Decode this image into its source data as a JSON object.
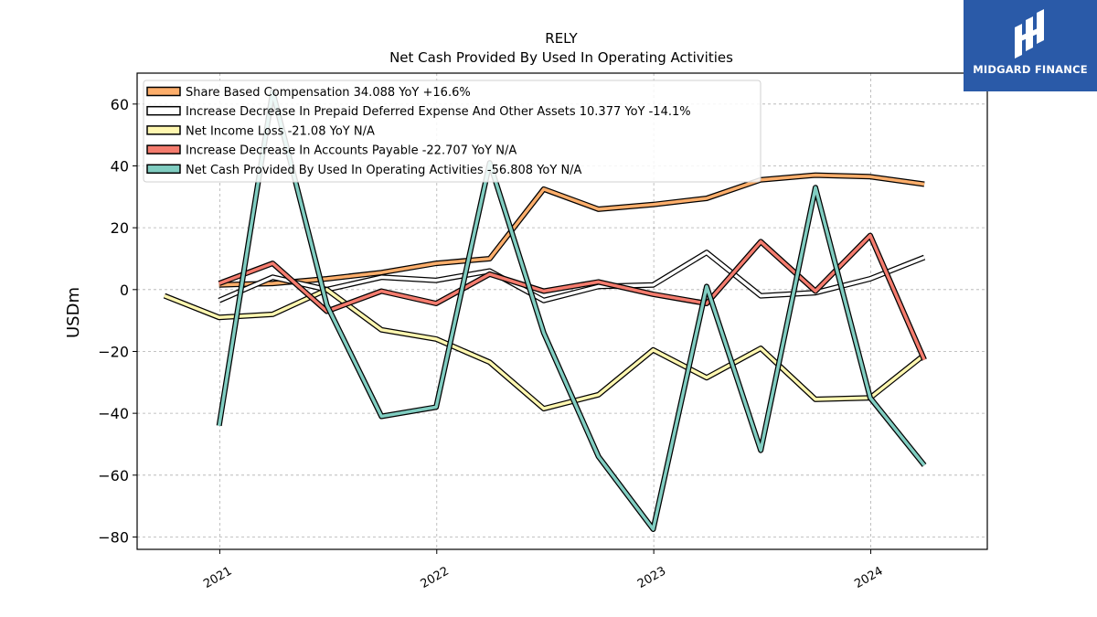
{
  "logo": {
    "text": "MIDGARD FINANCE"
  },
  "chart_data": {
    "type": "line",
    "title": "RELY",
    "subtitle": "Net Cash Provided By Used In Operating Activities",
    "ylabel": "USDm",
    "xlabel": "",
    "ylim": [
      -84,
      70
    ],
    "xlim": [
      "2020-08-15",
      "2024-07-15"
    ],
    "yticks": [
      60,
      40,
      20,
      0,
      -20,
      -40,
      -60,
      -80
    ],
    "ytick_labels": [
      "60",
      "40",
      "20",
      "0",
      "−20",
      "−40",
      "−60",
      "−80"
    ],
    "xticks": [
      "2021-01-01",
      "2022-01-01",
      "2023-01-01",
      "2024-01-01"
    ],
    "xtick_labels": [
      "2021",
      "2022",
      "2023",
      "2024"
    ],
    "grid": true,
    "legend_position": "top-left",
    "series": [
      {
        "name": "Share Based Compensation  34.088 YoY +16.6%",
        "color": "#fdae6b",
        "x": [
          "2020-12-31",
          "2021-03-31",
          "2021-06-30",
          "2021-09-30",
          "2021-12-31",
          "2022-03-31",
          "2022-06-30",
          "2022-09-30",
          "2022-12-31",
          "2023-03-31",
          "2023-06-30",
          "2023-09-30",
          "2023-12-31",
          "2024-03-31"
        ],
        "y": [
          1.5,
          2,
          3.5,
          5.5,
          8.5,
          10,
          32.5,
          26,
          27.5,
          29.5,
          35.5,
          37,
          36.5,
          34.1
        ]
      },
      {
        "name": "Increase Decrease In Prepaid Deferred Expense And Other Assets  10.377 YoY -14.1%",
        "color": "#ffffff",
        "x": [
          "2020-12-31",
          "2021-03-31",
          "2021-06-30",
          "2021-09-30",
          "2021-12-31",
          "2022-03-31",
          "2022-06-30",
          "2022-09-30",
          "2022-12-31",
          "2023-03-31",
          "2023-06-30",
          "2023-09-30",
          "2023-12-31",
          "2024-03-31"
        ],
        "y": [
          -3.5,
          4,
          0,
          4,
          3,
          6,
          -3.5,
          1,
          1.5,
          12,
          -2,
          -1,
          3.5,
          10.4
        ]
      },
      {
        "name": "Net Income Loss  -21.08 YoY N/A",
        "color": "#fff7b0",
        "x": [
          "2020-09-30",
          "2020-12-31",
          "2021-03-31",
          "2021-06-30",
          "2021-09-30",
          "2021-12-31",
          "2022-03-31",
          "2022-06-30",
          "2022-09-30",
          "2022-12-31",
          "2023-03-31",
          "2023-06-30",
          "2023-09-30",
          "2023-12-31",
          "2024-03-31"
        ],
        "y": [
          -2,
          -9,
          -8,
          0,
          -13,
          -16,
          -23.5,
          -38.5,
          -34,
          -19.5,
          -28.5,
          -19,
          -35.5,
          -35,
          -21.1
        ]
      },
      {
        "name": "Increase Decrease In Accounts Payable  -22.707 YoY N/A",
        "color": "#f47c6e",
        "x": [
          "2020-12-31",
          "2021-03-31",
          "2021-06-30",
          "2021-09-30",
          "2021-12-31",
          "2022-03-31",
          "2022-06-30",
          "2022-09-30",
          "2022-12-31",
          "2023-03-31",
          "2023-06-30",
          "2023-09-30",
          "2023-12-31",
          "2024-03-31"
        ],
        "y": [
          2,
          8.5,
          -7,
          -0.5,
          -4.5,
          5,
          -0.5,
          2.5,
          -1.5,
          -4.5,
          15.5,
          -0.5,
          17.5,
          -22.7
        ]
      },
      {
        "name": "Net Cash Provided By Used In Operating Activities  -56.808 YoY N/A",
        "color": "#80cdc1",
        "x": [
          "2020-12-31",
          "2021-03-31",
          "2021-06-30",
          "2021-09-30",
          "2021-12-31",
          "2022-03-31",
          "2022-06-30",
          "2022-09-30",
          "2022-12-31",
          "2023-03-31",
          "2023-06-30",
          "2023-09-30",
          "2023-12-31",
          "2024-03-31"
        ],
        "y": [
          -44,
          64,
          -5,
          -41,
          -38,
          41,
          -14,
          -54,
          -77.5,
          1,
          -52,
          33,
          -35,
          -56.8
        ]
      }
    ]
  }
}
